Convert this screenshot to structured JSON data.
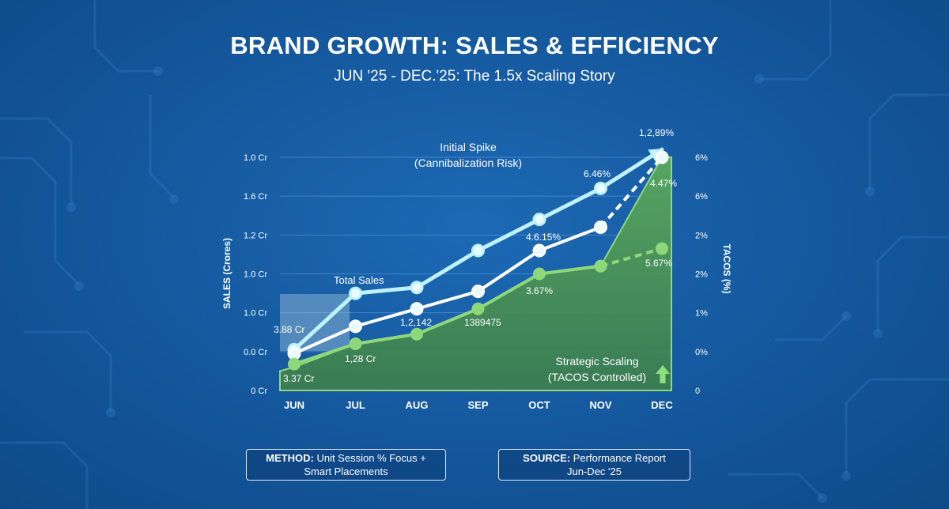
{
  "header": {
    "title": "BRAND GROWTH: SALES & EFFICIENCY",
    "subtitle": "JUN '25 - DEC.'25: The 1.5x Scaling Story"
  },
  "footer": {
    "method_label": "METHOD:",
    "method_line1": "Unit Session % Focus +",
    "method_line2": "Smart Placements",
    "source_label": "SOURCE:",
    "source_line1": "Performance Report",
    "source_line2": "Jun-Dec '25"
  },
  "chart_data": {
    "type": "line",
    "categories": [
      "JUN",
      "JUL",
      "AUG",
      "SEP",
      "OCT",
      "NOV",
      "DEC"
    ],
    "ylabel": "SALES (Crores)",
    "y2label": "TACOS (%)",
    "left_ticks": [
      "0 Cr",
      "0.0 Cr",
      "1.0 Cr",
      "1.0 Cr",
      "1.2 Cr",
      "1.6 Cr",
      "1.0 Cr"
    ],
    "right_ticks": [
      "0",
      "0%",
      "1%",
      "2%",
      "2%",
      "6%",
      "6%"
    ],
    "ylim": [
      0,
      6
    ],
    "series": [
      {
        "name": "Total Sales",
        "color": "#bff1ff",
        "values": [
          1.05,
          2.5,
          2.65,
          3.6,
          4.4,
          5.2,
          6.2
        ]
      },
      {
        "color": "#ffffff",
        "values": [
          0.95,
          1.65,
          2.1,
          2.55,
          3.6,
          4.2,
          6.0
        ],
        "dashed_last_segment": true
      },
      {
        "color": "#8fd87a",
        "values": [
          0.68,
          1.2,
          1.45,
          2.1,
          3.0,
          3.2,
          3.65
        ],
        "dashed_last_segment": true
      }
    ],
    "area": {
      "color": "#4f9a55",
      "values": [
        0.6,
        1.2,
        1.45,
        2.1,
        3.0,
        3.2,
        6.0
      ]
    },
    "point_labels": [
      "3.88 Cr",
      "3.37 Cr",
      "1,28 Cr",
      "1,2,142",
      "1389475",
      "3.67%",
      "4.6.15%",
      "6.46%",
      "1,2,89%",
      "4.47%",
      "5.67%"
    ],
    "annotations": [
      {
        "line1": "Initial Spike",
        "line2": "(Cannibalization Risk)"
      },
      {
        "line1": "Strategic Scaling",
        "line2": "(TACOS Controlled)"
      }
    ]
  }
}
